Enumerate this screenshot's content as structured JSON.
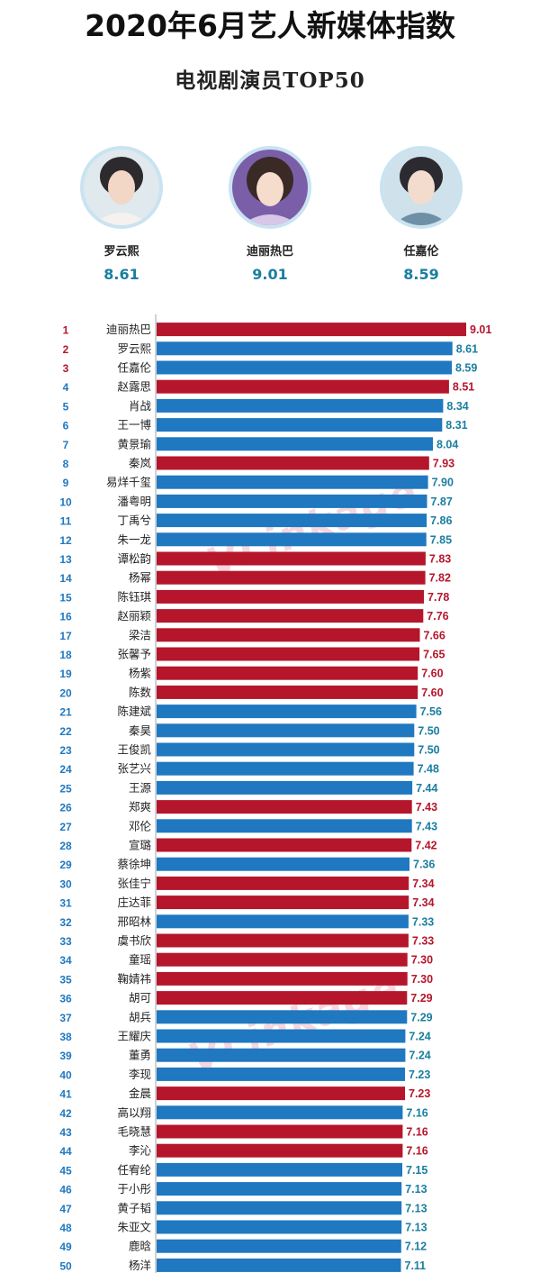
{
  "title": "2020年6月艺人新媒体指数",
  "subtitle": "电视剧演员TOP50",
  "watermark": "VLinkage",
  "top3": [
    {
      "name": "罗云熙",
      "value": "8.61"
    },
    {
      "name": "迪丽热巴",
      "value": "9.01"
    },
    {
      "name": "任嘉伦",
      "value": "8.59"
    }
  ],
  "colors": {
    "female": "#b5162b",
    "male": "#1f78c0",
    "value_male": "#1a7ea0"
  },
  "chart_data": {
    "type": "bar",
    "orientation": "horizontal",
    "xlim": [
      0,
      9.01
    ],
    "categories": [
      "迪丽热巴",
      "罗云熙",
      "任嘉伦",
      "赵露思",
      "肖战",
      "王一博",
      "黄景瑜",
      "秦岚",
      "易烊千玺",
      "潘粤明",
      "丁禹兮",
      "朱一龙",
      "谭松韵",
      "杨幂",
      "陈钰琪",
      "赵丽颖",
      "梁洁",
      "张馨予",
      "杨紫",
      "陈数",
      "陈建斌",
      "秦昊",
      "王俊凯",
      "张艺兴",
      "王源",
      "郑爽",
      "邓伦",
      "宣璐",
      "蔡徐坤",
      "张佳宁",
      "庄达菲",
      "邢昭林",
      "虞书欣",
      "童瑶",
      "鞠婧祎",
      "胡可",
      "胡兵",
      "王耀庆",
      "董勇",
      "李现",
      "金晨",
      "高以翔",
      "毛晓慧",
      "李沁",
      "任宥纶",
      "于小彤",
      "黄子韬",
      "朱亚文",
      "鹿晗",
      "杨洋"
    ],
    "values": [
      9.01,
      8.61,
      8.59,
      8.51,
      8.34,
      8.31,
      8.04,
      7.93,
      7.9,
      7.87,
      7.86,
      7.85,
      7.83,
      7.82,
      7.78,
      7.76,
      7.66,
      7.65,
      7.6,
      7.6,
      7.56,
      7.5,
      7.5,
      7.48,
      7.44,
      7.43,
      7.43,
      7.42,
      7.36,
      7.34,
      7.34,
      7.33,
      7.33,
      7.3,
      7.3,
      7.29,
      7.29,
      7.24,
      7.24,
      7.23,
      7.23,
      7.16,
      7.16,
      7.16,
      7.15,
      7.13,
      7.13,
      7.13,
      7.12,
      7.11
    ],
    "value_labels": [
      "9.01",
      "8.61",
      "8.59",
      "8.51",
      "8.34",
      "8.31",
      "8.04",
      "7.93",
      "7.90",
      "7.87",
      "7.86",
      "7.85",
      "7.83",
      "7.82",
      "7.78",
      "7.76",
      "7.66",
      "7.65",
      "7.60",
      "7.60",
      "7.56",
      "7.50",
      "7.50",
      "7.48",
      "7.44",
      "7.43",
      "7.43",
      "7.42",
      "7.36",
      "7.34",
      "7.34",
      "7.33",
      "7.33",
      "7.30",
      "7.30",
      "7.29",
      "7.29",
      "7.24",
      "7.24",
      "7.23",
      "7.23",
      "7.16",
      "7.16",
      "7.16",
      "7.15",
      "7.13",
      "7.13",
      "7.13",
      "7.12",
      "7.11"
    ],
    "series_color": [
      "female",
      "male",
      "male",
      "female",
      "male",
      "male",
      "male",
      "female",
      "male",
      "male",
      "male",
      "male",
      "female",
      "female",
      "female",
      "female",
      "female",
      "female",
      "female",
      "female",
      "male",
      "male",
      "male",
      "male",
      "male",
      "female",
      "male",
      "female",
      "male",
      "female",
      "female",
      "male",
      "female",
      "female",
      "female",
      "female",
      "male",
      "male",
      "male",
      "male",
      "female",
      "male",
      "female",
      "female",
      "male",
      "male",
      "male",
      "male",
      "male",
      "male"
    ],
    "rank_color": [
      "female",
      "female",
      "female",
      "male",
      "male",
      "male",
      "male",
      "male",
      "male",
      "male",
      "male",
      "male",
      "male",
      "male",
      "male",
      "male",
      "male",
      "male",
      "male",
      "male",
      "male",
      "male",
      "male",
      "male",
      "male",
      "male",
      "male",
      "male",
      "male",
      "male",
      "male",
      "male",
      "male",
      "male",
      "male",
      "male",
      "male",
      "male",
      "male",
      "male",
      "male",
      "male",
      "male",
      "male",
      "male",
      "male",
      "male",
      "male",
      "male",
      "male"
    ]
  }
}
